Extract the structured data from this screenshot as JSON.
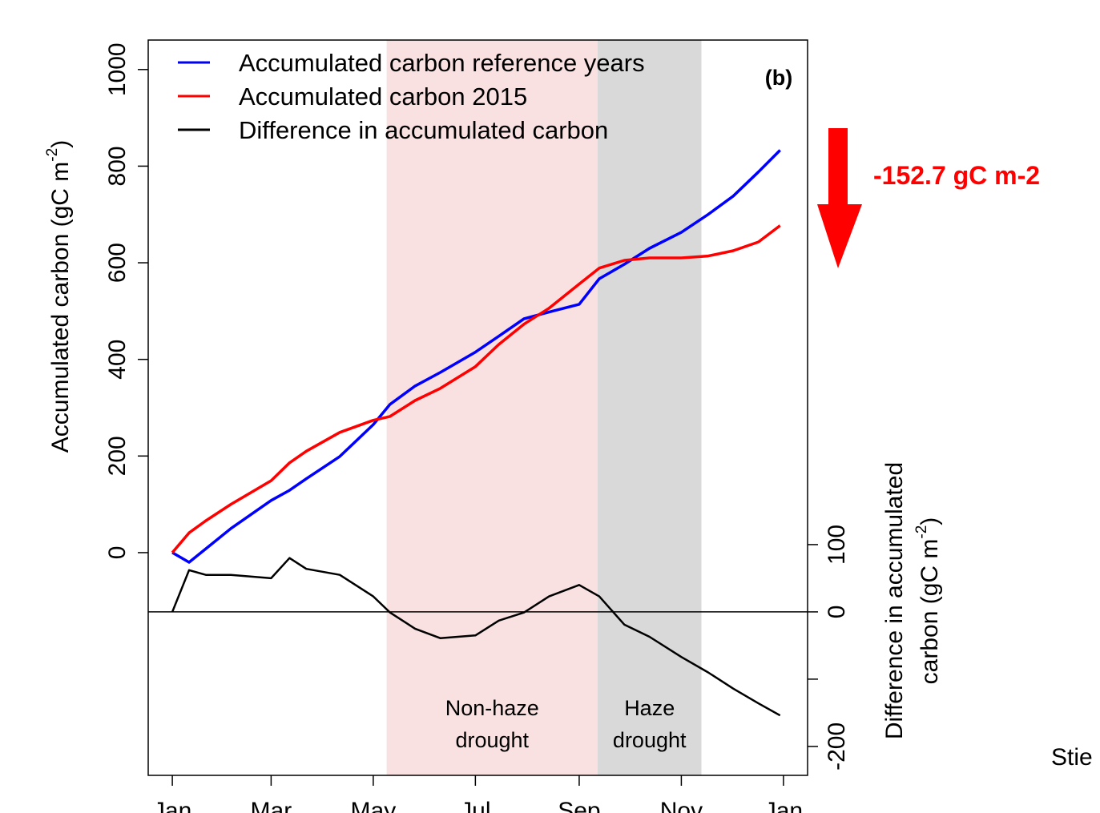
{
  "chart_data": {
    "type": "line",
    "panel_label": "(b)",
    "annotation": "-152.7 gC m-2",
    "credit": "Stie",
    "ylabel": [
      "Accumulated carbon (gC m",
      "-2",
      ")"
    ],
    "y2label": [
      "Difference in accumulated",
      "carbon (gC m",
      "-2",
      ")"
    ],
    "x": [
      0,
      10,
      20,
      35,
      59,
      70,
      80,
      100,
      120,
      130,
      145,
      160,
      181,
      195,
      210,
      225,
      243,
      255,
      270,
      285,
      304,
      320,
      335,
      350,
      363
    ],
    "xlim": [
      -14.4,
      379.4
    ],
    "xticks": [
      {
        "value": 0,
        "label": "Jan"
      },
      {
        "value": 59,
        "label": "Mar"
      },
      {
        "value": 120,
        "label": "May"
      },
      {
        "value": 181,
        "label": "Jul"
      },
      {
        "value": 243,
        "label": "Sep"
      },
      {
        "value": 304,
        "label": "Nov"
      },
      {
        "value": 365,
        "label": "Jan"
      }
    ],
    "ylim": [
      -461,
      1061
    ],
    "yticks": [
      0,
      200,
      400,
      600,
      800,
      1000
    ],
    "y2lim": [
      -243,
      850
    ],
    "y2ticks": [
      -200,
      {
        "value": -100,
        "label": null
      },
      0,
      100
    ],
    "y2_zero_line": 0,
    "spans": [
      {
        "start": 128,
        "end": 254,
        "color": "#f9e1e1",
        "label": [
          "Non-haze",
          "drought"
        ]
      },
      {
        "start": 254,
        "end": 316,
        "color": "#d9d9d9",
        "label": [
          "Haze",
          "drought"
        ]
      }
    ],
    "series": [
      {
        "name": "Accumulated carbon reference years",
        "color": "#0000ff",
        "values": [
          0,
          -20,
          8,
          50,
          108,
          129,
          153,
          199,
          265,
          307,
          345,
          373,
          415,
          448,
          484,
          498,
          514,
          567,
          597,
          630,
          663,
          700,
          738,
          788,
          833
        ]
      },
      {
        "name": "Accumulated carbon 2015",
        "color": "#ff0000",
        "values": [
          0,
          41,
          66,
          100,
          149,
          186,
          210,
          249,
          274,
          282,
          315,
          340,
          385,
          431,
          473,
          506,
          556,
          589,
          605,
          610,
          610,
          614,
          625,
          643,
          677
        ]
      },
      {
        "name": "Difference in accumulated carbon",
        "color": "#000000",
        "axis": "y2",
        "values": [
          0,
          62,
          55,
          55,
          50,
          80,
          64,
          55,
          23,
          -1,
          -25,
          -39,
          -35,
          -13,
          -1,
          23,
          40,
          23,
          -19,
          -37,
          -67,
          -90,
          -114,
          -136,
          -154
        ]
      }
    ]
  }
}
